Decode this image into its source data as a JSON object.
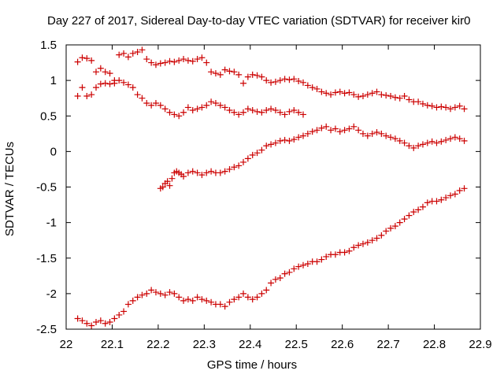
{
  "chart_data": {
    "type": "scatter",
    "title": "Day 227 of 2017, Sidereal Day-to-day VTEC variation (SDTVAR) for receiver kir0",
    "xlabel": "GPS time / hours",
    "ylabel": "SDTVAR / TECUs",
    "xlim": [
      22,
      22.9
    ],
    "ylim": [
      -2.5,
      1.5
    ],
    "x_ticks": [
      "22",
      "22.1",
      "22.2",
      "22.3",
      "22.4",
      "22.5",
      "22.6",
      "22.7",
      "22.8",
      "22.9"
    ],
    "y_ticks": [
      "-2.5",
      "-2",
      "-1.5",
      "-1",
      "-0.5",
      "0",
      "0.5",
      "1",
      "1.5"
    ],
    "grid": false,
    "marker": "plus",
    "color": "#cc0000",
    "series": [
      {
        "x": [
          22.025,
          22.035,
          22.045,
          22.055,
          22.065,
          22.075,
          22.085,
          22.095,
          22.105,
          22.115,
          22.125,
          22.135,
          22.145,
          22.155,
          22.165,
          22.175,
          22.185,
          22.195,
          22.205,
          22.215,
          22.225,
          22.235,
          22.245,
          22.255,
          22.265,
          22.275,
          22.285,
          22.295,
          22.305,
          22.315,
          22.325,
          22.335,
          22.345,
          22.355,
          22.365,
          22.375,
          22.385,
          22.395,
          22.405,
          22.415,
          22.425,
          22.435,
          22.445,
          22.455,
          22.465,
          22.475,
          22.485,
          22.495,
          22.505,
          22.515,
          22.525,
          22.535,
          22.545,
          22.555,
          22.565,
          22.575,
          22.585,
          22.595,
          22.605,
          22.615,
          22.625,
          22.635,
          22.645,
          22.655,
          22.665,
          22.675,
          22.685,
          22.695,
          22.705,
          22.715,
          22.725,
          22.735,
          22.745,
          22.755,
          22.765,
          22.775,
          22.785,
          22.795,
          22.805,
          22.815,
          22.825,
          22.835,
          22.845,
          22.855,
          22.865
        ],
        "y": [
          1.26,
          1.32,
          1.31,
          1.28,
          1.12,
          1.17,
          1.12,
          1.1,
          1.0,
          1.36,
          1.38,
          1.33,
          1.38,
          1.4,
          1.43,
          1.3,
          1.25,
          1.22,
          1.24,
          1.25,
          1.27,
          1.26,
          1.28,
          1.3,
          1.28,
          1.27,
          1.3,
          1.32,
          1.25,
          1.12,
          1.1,
          1.08,
          1.15,
          1.13,
          1.12,
          1.08,
          0.96,
          1.05,
          1.08,
          1.07,
          1.05,
          1.0,
          0.97,
          0.98,
          1.0,
          1.02,
          1.01,
          1.02,
          0.99,
          0.97,
          0.93,
          0.9,
          0.88,
          0.84,
          0.82,
          0.8,
          0.83,
          0.84,
          0.82,
          0.83,
          0.8,
          0.77,
          0.78,
          0.8,
          0.82,
          0.84,
          0.8,
          0.79,
          0.78,
          0.76,
          0.75,
          0.78,
          0.73,
          0.7,
          0.7,
          0.67,
          0.65,
          0.64,
          0.62,
          0.63,
          0.62,
          0.6,
          0.62,
          0.64,
          0.6
        ]
      },
      {
        "x": [
          22.025,
          22.035,
          22.045,
          22.055,
          22.065,
          22.075,
          22.085,
          22.095,
          22.105,
          22.115,
          22.125,
          22.135,
          22.145,
          22.155,
          22.165,
          22.175,
          22.185,
          22.195,
          22.205,
          22.215,
          22.225,
          22.235,
          22.245,
          22.255,
          22.265,
          22.275,
          22.285,
          22.295,
          22.305,
          22.315,
          22.325,
          22.335,
          22.345,
          22.355,
          22.365,
          22.375,
          22.385,
          22.395,
          22.405,
          22.415,
          22.425,
          22.435,
          22.445,
          22.455,
          22.465,
          22.475,
          22.485,
          22.495,
          22.505,
          22.515
        ],
        "y": [
          0.78,
          0.9,
          0.78,
          0.8,
          0.9,
          0.95,
          0.96,
          0.95,
          0.96,
          1.0,
          0.97,
          0.94,
          0.9,
          0.8,
          0.75,
          0.68,
          0.65,
          0.68,
          0.65,
          0.6,
          0.55,
          0.52,
          0.5,
          0.55,
          0.62,
          0.58,
          0.6,
          0.62,
          0.65,
          0.7,
          0.68,
          0.65,
          0.62,
          0.58,
          0.55,
          0.52,
          0.55,
          0.6,
          0.58,
          0.56,
          0.55,
          0.58,
          0.6,
          0.58,
          0.55,
          0.52,
          0.56,
          0.58,
          0.55,
          0.52
        ]
      },
      {
        "x": [
          22.205,
          22.21,
          22.215,
          22.22,
          22.225,
          22.23,
          22.235,
          22.24,
          22.245,
          22.25,
          22.255,
          22.265,
          22.275,
          22.285,
          22.295,
          22.305,
          22.315,
          22.325,
          22.335,
          22.345,
          22.355,
          22.365,
          22.375,
          22.385,
          22.395,
          22.405,
          22.415,
          22.425,
          22.435,
          22.445,
          22.455,
          22.465,
          22.475,
          22.485,
          22.495,
          22.505,
          22.515,
          22.525,
          22.535,
          22.545,
          22.555,
          22.565,
          22.575,
          22.585,
          22.595,
          22.605,
          22.615,
          22.625,
          22.635,
          22.645,
          22.655,
          22.665,
          22.675,
          22.685,
          22.695,
          22.705,
          22.715,
          22.725,
          22.735,
          22.745,
          22.755,
          22.765,
          22.775,
          22.785,
          22.795,
          22.805,
          22.815,
          22.825,
          22.835,
          22.845,
          22.855,
          22.865
        ],
        "y": [
          -0.52,
          -0.5,
          -0.45,
          -0.42,
          -0.48,
          -0.38,
          -0.3,
          -0.28,
          -0.3,
          -0.32,
          -0.35,
          -0.3,
          -0.28,
          -0.3,
          -0.33,
          -0.3,
          -0.28,
          -0.3,
          -0.3,
          -0.28,
          -0.25,
          -0.22,
          -0.2,
          -0.15,
          -0.1,
          -0.05,
          -0.02,
          0.02,
          0.08,
          0.1,
          0.12,
          0.15,
          0.16,
          0.15,
          0.17,
          0.2,
          0.22,
          0.25,
          0.28,
          0.3,
          0.33,
          0.35,
          0.3,
          0.32,
          0.28,
          0.3,
          0.32,
          0.35,
          0.3,
          0.25,
          0.22,
          0.25,
          0.27,
          0.25,
          0.22,
          0.2,
          0.18,
          0.15,
          0.12,
          0.08,
          0.05,
          0.08,
          0.1,
          0.12,
          0.14,
          0.12,
          0.14,
          0.16,
          0.18,
          0.2,
          0.18,
          0.15
        ]
      },
      {
        "x": [
          22.025,
          22.035,
          22.045,
          22.055,
          22.065,
          22.075,
          22.085,
          22.095,
          22.105,
          22.115,
          22.125,
          22.135,
          22.145,
          22.155,
          22.165,
          22.175,
          22.185,
          22.195,
          22.205,
          22.215,
          22.225,
          22.235,
          22.245,
          22.255,
          22.265,
          22.275,
          22.285,
          22.295,
          22.305,
          22.315,
          22.325,
          22.335,
          22.345,
          22.355,
          22.365,
          22.375,
          22.385,
          22.395,
          22.405,
          22.415,
          22.425,
          22.435,
          22.445,
          22.455,
          22.465,
          22.475,
          22.485,
          22.495,
          22.505,
          22.515,
          22.525,
          22.535,
          22.545,
          22.555,
          22.565,
          22.575,
          22.585,
          22.595,
          22.605,
          22.615,
          22.625,
          22.635,
          22.645,
          22.655,
          22.665,
          22.675,
          22.685,
          22.695,
          22.705,
          22.715,
          22.725,
          22.735,
          22.745,
          22.755,
          22.765,
          22.775,
          22.785,
          22.795,
          22.805,
          22.815,
          22.825,
          22.835,
          22.845,
          22.855,
          22.865
        ],
        "y": [
          -2.35,
          -2.38,
          -2.42,
          -2.45,
          -2.4,
          -2.38,
          -2.42,
          -2.4,
          -2.35,
          -2.3,
          -2.25,
          -2.15,
          -2.1,
          -2.05,
          -2.02,
          -2.0,
          -1.95,
          -1.98,
          -2.0,
          -2.02,
          -1.98,
          -2.0,
          -2.05,
          -2.1,
          -2.08,
          -2.1,
          -2.05,
          -2.08,
          -2.1,
          -2.12,
          -2.15,
          -2.15,
          -2.18,
          -2.12,
          -2.08,
          -2.05,
          -2.0,
          -2.05,
          -2.08,
          -2.05,
          -2.0,
          -1.95,
          -1.85,
          -1.8,
          -1.78,
          -1.72,
          -1.7,
          -1.65,
          -1.62,
          -1.6,
          -1.58,
          -1.55,
          -1.55,
          -1.52,
          -1.48,
          -1.45,
          -1.45,
          -1.42,
          -1.42,
          -1.4,
          -1.35,
          -1.32,
          -1.3,
          -1.28,
          -1.25,
          -1.22,
          -1.18,
          -1.12,
          -1.08,
          -1.05,
          -1.0,
          -0.95,
          -0.9,
          -0.85,
          -0.82,
          -0.78,
          -0.72,
          -0.7,
          -0.7,
          -0.68,
          -0.65,
          -0.62,
          -0.6,
          -0.55,
          -0.52
        ]
      }
    ]
  }
}
